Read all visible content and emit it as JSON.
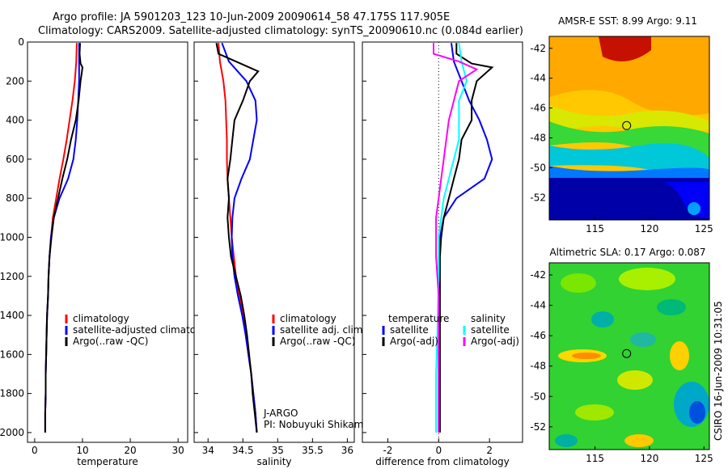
{
  "header": {
    "line1": "Argo profile: JA 5901203_123 10-Jun-2009 20090614_58 47.175S 117.905E",
    "line2": "Climatology: CARS2009. Satellite-adjusted climatology: synTS_20090610.nc (0.084d earlier)"
  },
  "side_label": "CSIRO 16-Jun-2009 10:31:05",
  "colors": {
    "climatology": "#ff0000",
    "satellite": "#0000ff",
    "argo": "#000000",
    "sal_sat": "#00ffff",
    "sal_argo": "#ff00ff"
  },
  "chart_data": [
    {
      "type": "line",
      "xlabel": "temperature",
      "xlim": [
        -1.5,
        32
      ],
      "ylim": [
        2050,
        0
      ],
      "xticks": [
        0,
        10,
        20,
        30
      ],
      "yticks": [
        0,
        200,
        400,
        600,
        800,
        1000,
        1200,
        1400,
        1600,
        1800,
        2000
      ],
      "series": [
        {
          "name": "climatology",
          "color": "#ff0000",
          "points": [
            [
              8.8,
              5
            ],
            [
              8.7,
              100
            ],
            [
              8.4,
              200
            ],
            [
              7.9,
              300
            ],
            [
              7.3,
              400
            ],
            [
              6.7,
              500
            ],
            [
              6.0,
              600
            ],
            [
              5.2,
              700
            ],
            [
              4.5,
              800
            ],
            [
              3.8,
              900
            ],
            [
              3.4,
              1000
            ],
            [
              3.1,
              1100
            ],
            [
              2.9,
              1200
            ],
            [
              2.8,
              1300
            ],
            [
              2.6,
              1400
            ],
            [
              2.5,
              1500
            ],
            [
              2.4,
              1600
            ],
            [
              2.3,
              1700
            ],
            [
              2.3,
              1800
            ],
            [
              2.2,
              1900
            ],
            [
              2.2,
              2000
            ]
          ]
        },
        {
          "name": "satellite-adjusted climatology",
          "color": "#0000ff",
          "points": [
            [
              9.3,
              5
            ],
            [
              9.3,
              100
            ],
            [
              9.3,
              200
            ],
            [
              9.1,
              300
            ],
            [
              8.9,
              400
            ],
            [
              8.6,
              500
            ],
            [
              8.1,
              600
            ],
            [
              7.0,
              700
            ],
            [
              5.2,
              800
            ],
            [
              4.0,
              900
            ],
            [
              3.4,
              1000
            ],
            [
              3.1,
              1100
            ],
            [
              2.9,
              1200
            ],
            [
              2.8,
              1300
            ],
            [
              2.6,
              1400
            ],
            [
              2.5,
              1500
            ],
            [
              2.4,
              1600
            ],
            [
              2.3,
              1700
            ],
            [
              2.3,
              1800
            ],
            [
              2.2,
              1900
            ],
            [
              2.2,
              2000
            ]
          ]
        },
        {
          "name": "Argo(..raw -QC)",
          "color": "#000000",
          "points": [
            [
              9.5,
              5
            ],
            [
              9.4,
              60
            ],
            [
              9.6,
              110
            ],
            [
              10.0,
              130
            ],
            [
              9.6,
              200
            ],
            [
              9.2,
              300
            ],
            [
              8.6,
              400
            ],
            [
              7.6,
              500
            ],
            [
              6.8,
              600
            ],
            [
              5.8,
              700
            ],
            [
              4.9,
              800
            ],
            [
              4.0,
              900
            ],
            [
              3.5,
              1000
            ],
            [
              3.1,
              1100
            ],
            [
              2.9,
              1200
            ],
            [
              2.8,
              1300
            ],
            [
              2.6,
              1400
            ],
            [
              2.5,
              1500
            ],
            [
              2.4,
              1600
            ],
            [
              2.3,
              1700
            ],
            [
              2.3,
              1800
            ],
            [
              2.2,
              1900
            ],
            [
              2.2,
              2000
            ]
          ]
        }
      ],
      "legend": {
        "position": "lower-right",
        "entries": [
          {
            "label": "climatology",
            "color": "#ff0000"
          },
          {
            "label": "satellite-adjusted climatology",
            "color": "#0000ff"
          },
          {
            "label": "Argo(..raw -QC)",
            "color": "#000000"
          }
        ]
      }
    },
    {
      "type": "line",
      "xlabel": "salinity",
      "xlim": [
        33.8,
        36.1
      ],
      "ylim": [
        2050,
        0
      ],
      "xticks": [
        34,
        34.5,
        35,
        35.5,
        36
      ],
      "series": [
        {
          "name": "climatology",
          "color": "#ff0000",
          "points": [
            [
              34.15,
              5
            ],
            [
              34.17,
              100
            ],
            [
              34.22,
              200
            ],
            [
              34.25,
              300
            ],
            [
              34.26,
              400
            ],
            [
              34.27,
              500
            ],
            [
              34.27,
              600
            ],
            [
              34.28,
              700
            ],
            [
              34.3,
              800
            ],
            [
              34.32,
              900
            ],
            [
              34.34,
              1000
            ],
            [
              34.37,
              1100
            ],
            [
              34.4,
              1200
            ],
            [
              34.45,
              1300
            ],
            [
              34.5,
              1400
            ],
            [
              34.54,
              1500
            ],
            [
              34.58,
              1600
            ],
            [
              34.62,
              1700
            ],
            [
              34.65,
              1800
            ],
            [
              34.68,
              1900
            ],
            [
              34.7,
              2000
            ]
          ]
        },
        {
          "name": "satellite adj. clim.",
          "color": "#0000ff",
          "points": [
            [
              34.2,
              5
            ],
            [
              34.3,
              100
            ],
            [
              34.55,
              200
            ],
            [
              34.68,
              300
            ],
            [
              34.7,
              400
            ],
            [
              34.65,
              500
            ],
            [
              34.6,
              600
            ],
            [
              34.48,
              700
            ],
            [
              34.38,
              800
            ],
            [
              34.35,
              900
            ],
            [
              34.34,
              1000
            ],
            [
              34.35,
              1100
            ],
            [
              34.38,
              1200
            ],
            [
              34.43,
              1300
            ],
            [
              34.49,
              1400
            ],
            [
              34.54,
              1500
            ],
            [
              34.58,
              1600
            ],
            [
              34.62,
              1700
            ],
            [
              34.65,
              1800
            ],
            [
              34.68,
              1900
            ],
            [
              34.7,
              2000
            ]
          ]
        },
        {
          "name": "Argo(..raw -QC)",
          "color": "#000000",
          "points": [
            [
              34.12,
              5
            ],
            [
              34.15,
              60
            ],
            [
              34.4,
              100
            ],
            [
              34.72,
              150
            ],
            [
              34.6,
              200
            ],
            [
              34.5,
              300
            ],
            [
              34.38,
              400
            ],
            [
              34.35,
              500
            ],
            [
              34.32,
              600
            ],
            [
              34.28,
              700
            ],
            [
              34.3,
              800
            ],
            [
              34.28,
              900
            ],
            [
              34.3,
              1000
            ],
            [
              34.33,
              1100
            ],
            [
              34.4,
              1200
            ],
            [
              34.47,
              1300
            ],
            [
              34.52,
              1400
            ],
            [
              34.56,
              1500
            ],
            [
              34.59,
              1600
            ],
            [
              34.62,
              1700
            ],
            [
              34.64,
              1800
            ],
            [
              34.67,
              1900
            ],
            [
              34.7,
              2000
            ]
          ]
        }
      ],
      "legend": {
        "position": "lower-right",
        "entries": [
          {
            "label": "climatology",
            "color": "#ff0000"
          },
          {
            "label": "satellite adj. clim.",
            "color": "#0000ff"
          },
          {
            "label": "Argo(..raw -QC)",
            "color": "#000000"
          }
        ]
      },
      "annotations": [
        "J-ARGO",
        "PI: Nobuyuki Shikama"
      ]
    },
    {
      "type": "line",
      "xlabel": "difference from climatology",
      "xlim": [
        -3,
        3.3
      ],
      "ylim": [
        2050,
        0
      ],
      "xticks": [
        -2,
        0,
        2
      ],
      "series": [
        {
          "name": "temperature satellite",
          "color": "#0000ff",
          "points": [
            [
              0.5,
              5
            ],
            [
              0.6,
              100
            ],
            [
              0.9,
              200
            ],
            [
              1.2,
              300
            ],
            [
              1.6,
              400
            ],
            [
              1.9,
              500
            ],
            [
              2.1,
              600
            ],
            [
              1.8,
              700
            ],
            [
              0.7,
              800
            ],
            [
              0.2,
              900
            ],
            [
              0.05,
              1000
            ],
            [
              0,
              1100
            ],
            [
              0,
              1200
            ],
            [
              0,
              1300
            ],
            [
              0,
              1500
            ],
            [
              0,
              1700
            ],
            [
              0,
              1900
            ],
            [
              0,
              2000
            ]
          ]
        },
        {
          "name": "temperature Argo(-adj)",
          "color": "#000000",
          "points": [
            [
              0.7,
              5
            ],
            [
              0.7,
              60
            ],
            [
              1.3,
              110
            ],
            [
              2.1,
              130
            ],
            [
              1.5,
              200
            ],
            [
              1.3,
              300
            ],
            [
              1.3,
              400
            ],
            [
              0.9,
              500
            ],
            [
              0.8,
              600
            ],
            [
              0.6,
              700
            ],
            [
              0.4,
              800
            ],
            [
              0.2,
              900
            ],
            [
              0.1,
              1000
            ],
            [
              0.05,
              1100
            ],
            [
              0.05,
              1300
            ],
            [
              0.05,
              1500
            ],
            [
              0.05,
              1700
            ],
            [
              0.05,
              1900
            ],
            [
              0.05,
              2000
            ]
          ]
        },
        {
          "name": "salinity satellite",
          "color": "#00ffff",
          "points": [
            [
              0.8,
              5
            ],
            [
              0.9,
              100
            ],
            [
              1.1,
              200
            ],
            [
              0.8,
              300
            ],
            [
              0.8,
              400
            ],
            [
              0.8,
              500
            ],
            [
              0.6,
              600
            ],
            [
              0.4,
              700
            ],
            [
              0.2,
              800
            ],
            [
              0.1,
              900
            ],
            [
              0,
              1000
            ],
            [
              0,
              1200
            ],
            [
              -0.05,
              1500
            ],
            [
              -0.1,
              1700
            ],
            [
              -0.1,
              1900
            ],
            [
              -0.1,
              2000
            ]
          ]
        },
        {
          "name": "salinity Argo(-adj)",
          "color": "#ff00ff",
          "points": [
            [
              -0.2,
              5
            ],
            [
              -0.2,
              60
            ],
            [
              0.8,
              100
            ],
            [
              1.5,
              140
            ],
            [
              0.8,
              200
            ],
            [
              0.6,
              300
            ],
            [
              0.4,
              400
            ],
            [
              0.3,
              500
            ],
            [
              0.2,
              600
            ],
            [
              0.1,
              700
            ],
            [
              0,
              800
            ],
            [
              -0.1,
              900
            ],
            [
              -0.1,
              1000
            ],
            [
              -0.1,
              1100
            ],
            [
              0,
              1300
            ],
            [
              0,
              1500
            ],
            [
              0,
              1700
            ],
            [
              0,
              1900
            ],
            [
              0,
              2000
            ]
          ]
        }
      ],
      "legend": {
        "position": "lower-center",
        "groups": [
          {
            "title": "temperature",
            "entries": [
              {
                "label": "satellite",
                "color": "#0000ff"
              },
              {
                "label": "Argo(-adj)",
                "color": "#000000"
              }
            ]
          },
          {
            "title": "salinity",
            "entries": [
              {
                "label": "satellite",
                "color": "#00ffff"
              },
              {
                "label": "Argo(-adj)",
                "color": "#ff00ff"
              }
            ]
          }
        ]
      }
    },
    {
      "type": "heatmap",
      "title": "AMSR-E SST: 8.99 Argo: 9.11",
      "xlim": [
        110.8,
        125.5
      ],
      "ylim": [
        -53.5,
        -41.2
      ],
      "xticks": [
        115,
        120,
        125
      ],
      "yticks": [
        -42,
        -44,
        -46,
        -48,
        -50,
        -52
      ],
      "marker": {
        "lon": 117.905,
        "lat": -47.175
      }
    },
    {
      "type": "heatmap",
      "title": "Altimetric SLA: 0.17 Argo: 0.087",
      "xlim": [
        110.8,
        125.5
      ],
      "ylim": [
        -53.5,
        -41.2
      ],
      "xticks": [
        115,
        120,
        125
      ],
      "yticks": [
        -42,
        -44,
        -46,
        -48,
        -50,
        -52
      ],
      "marker": {
        "lon": 117.905,
        "lat": -47.175
      }
    }
  ]
}
